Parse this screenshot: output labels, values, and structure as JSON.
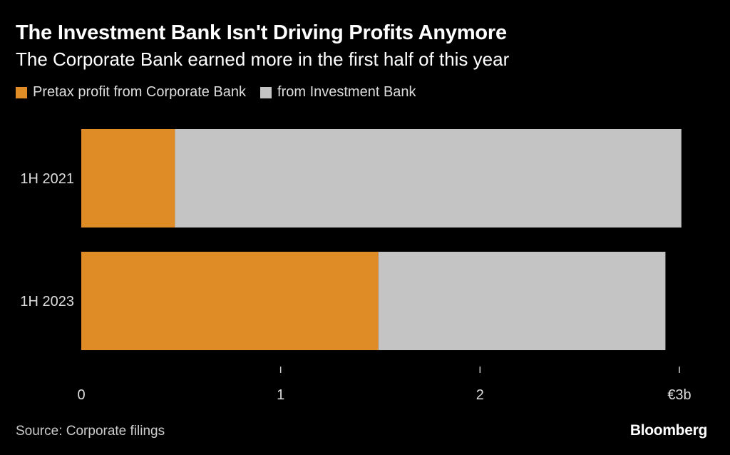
{
  "header": {
    "title": "The Investment Bank Isn't Driving Profits Anymore",
    "subtitle": "The Corporate Bank earned more in the first half of this year"
  },
  "legend": [
    {
      "label": "Pretax profit from Corporate Bank",
      "color": "#df8c27"
    },
    {
      "label": "from Investment Bank",
      "color": "#c4c4c4"
    }
  ],
  "chart_data": {
    "type": "bar",
    "orientation": "horizontal",
    "stacked": true,
    "categories": [
      "1H 2021",
      "1H 2023"
    ],
    "series": [
      {
        "name": "Pretax profit from Corporate Bank",
        "values": [
          0.47,
          1.49
        ],
        "color": "#df8c27"
      },
      {
        "name": "from Investment Bank",
        "values": [
          2.54,
          1.44
        ],
        "color": "#c4c4c4"
      }
    ],
    "xlim": [
      0,
      3
    ],
    "x_ticks": [
      0,
      1,
      2,
      3
    ],
    "x_tick_labels": [
      "0",
      "1",
      "2",
      "€3b"
    ],
    "title": "The Investment Bank Isn't Driving Profits Anymore",
    "subtitle": "The Corporate Bank earned more in the first half of this year",
    "xlabel": "",
    "ylabel": ""
  },
  "footer": {
    "source": "Source: Corporate filings",
    "brand": "Bloomberg"
  }
}
